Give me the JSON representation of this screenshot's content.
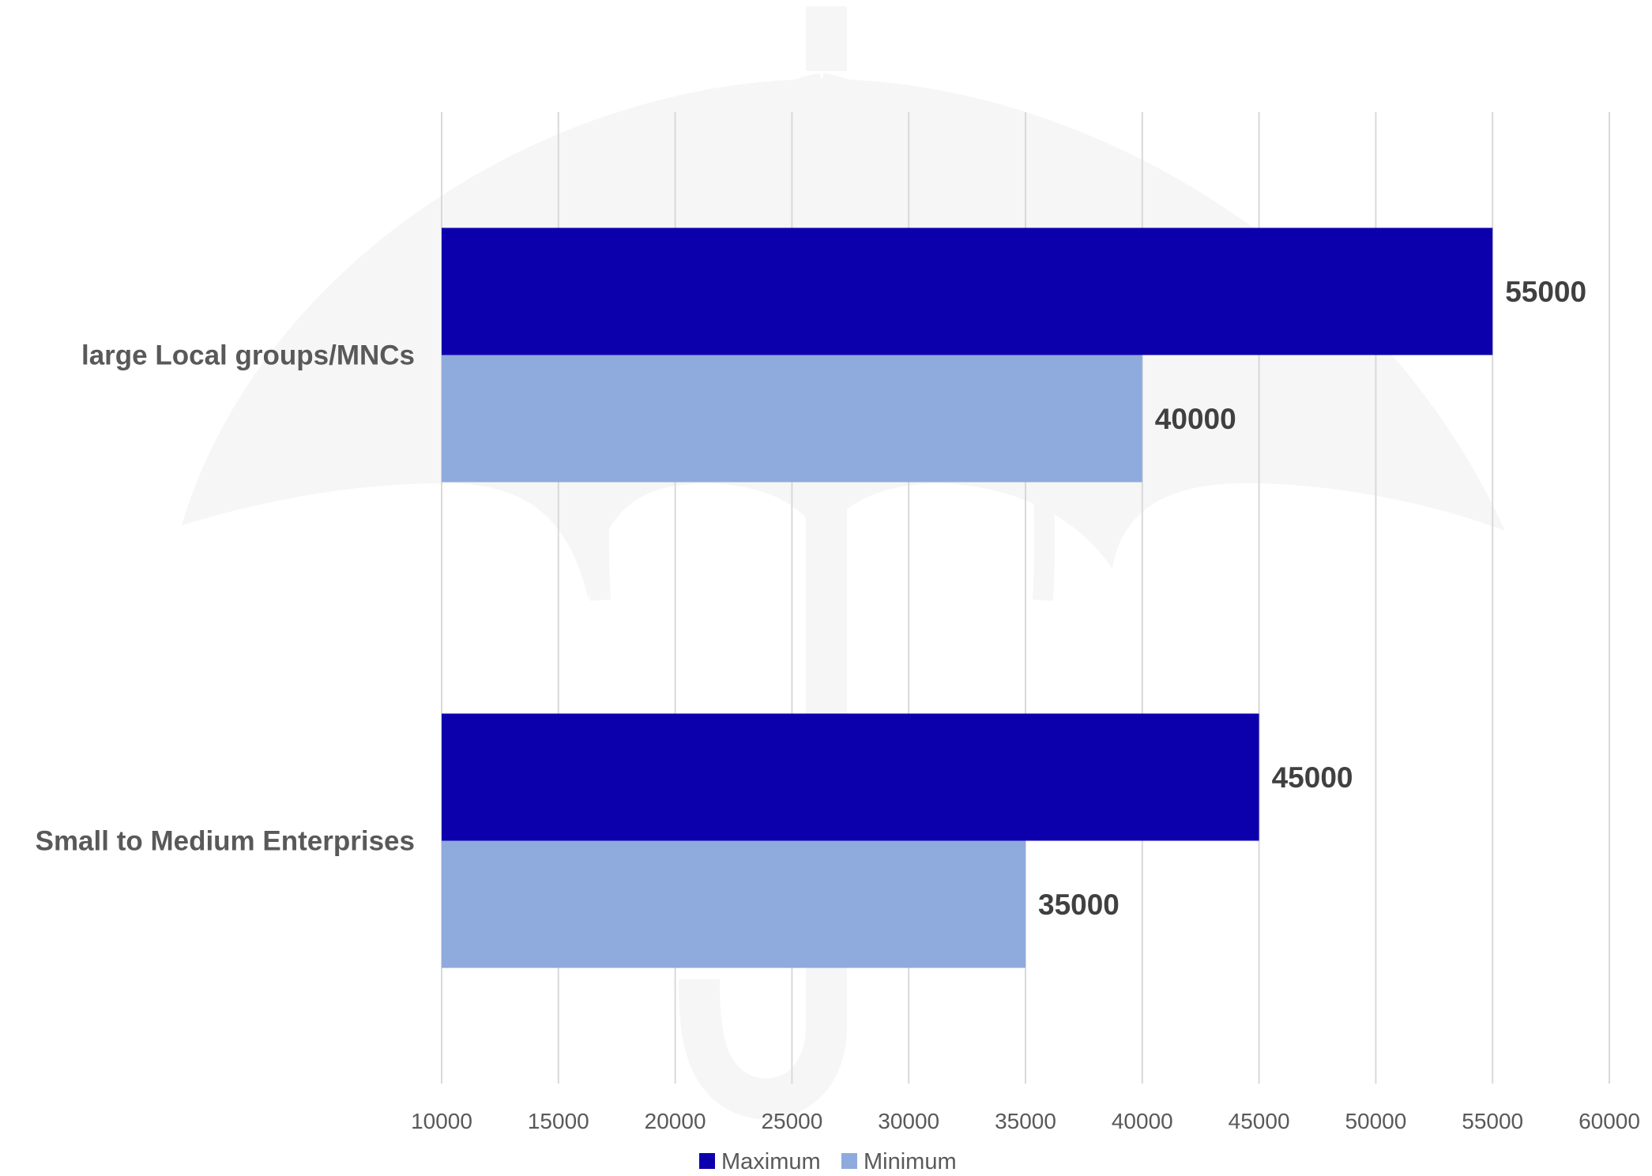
{
  "chart_data": {
    "type": "bar",
    "orientation": "horizontal",
    "categories": [
      "large Local groups/MNCs",
      "Small to Medium Enterprises"
    ],
    "series": [
      {
        "name": "Maximum",
        "color": "#0c00ad",
        "values": [
          55000,
          45000
        ]
      },
      {
        "name": "Minimum",
        "color": "#8faadc",
        "values": [
          40000,
          35000
        ]
      }
    ],
    "xlim": [
      10000,
      60000
    ],
    "x_ticks": [
      10000,
      15000,
      20000,
      25000,
      30000,
      35000,
      40000,
      45000,
      50000,
      55000,
      60000
    ],
    "data_labels": {
      "large Local groups/MNCs": [
        "55000",
        "40000"
      ],
      "Small to Medium Enterprises": [
        "45000",
        "35000"
      ]
    },
    "grid": "vertical",
    "legend": "bottom-center",
    "background_icon": "umbrella-watermark-icon"
  }
}
